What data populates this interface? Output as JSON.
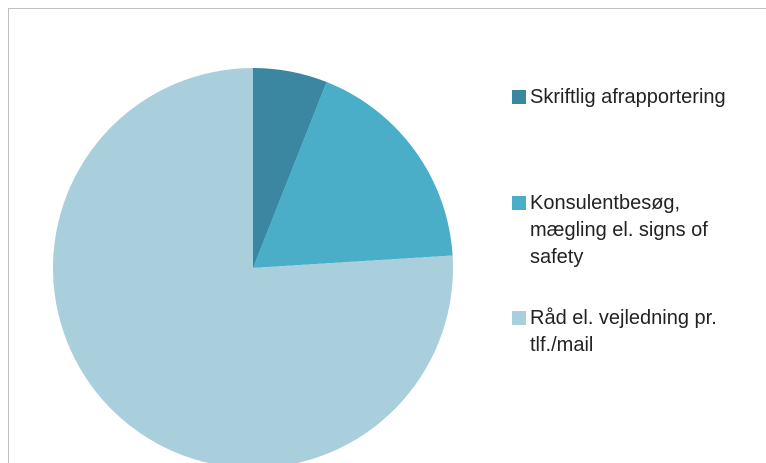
{
  "chart_data": {
    "type": "pie",
    "categories": [
      "Skriftlig afrapportering",
      "Konsulentbesøg, mægling el. signs of safety",
      "Råd el. vejledning pr. tlf./mail"
    ],
    "values": [
      6,
      18,
      76
    ],
    "colors": [
      "#3b87a1",
      "#4aaec8",
      "#a9cfdc"
    ]
  }
}
